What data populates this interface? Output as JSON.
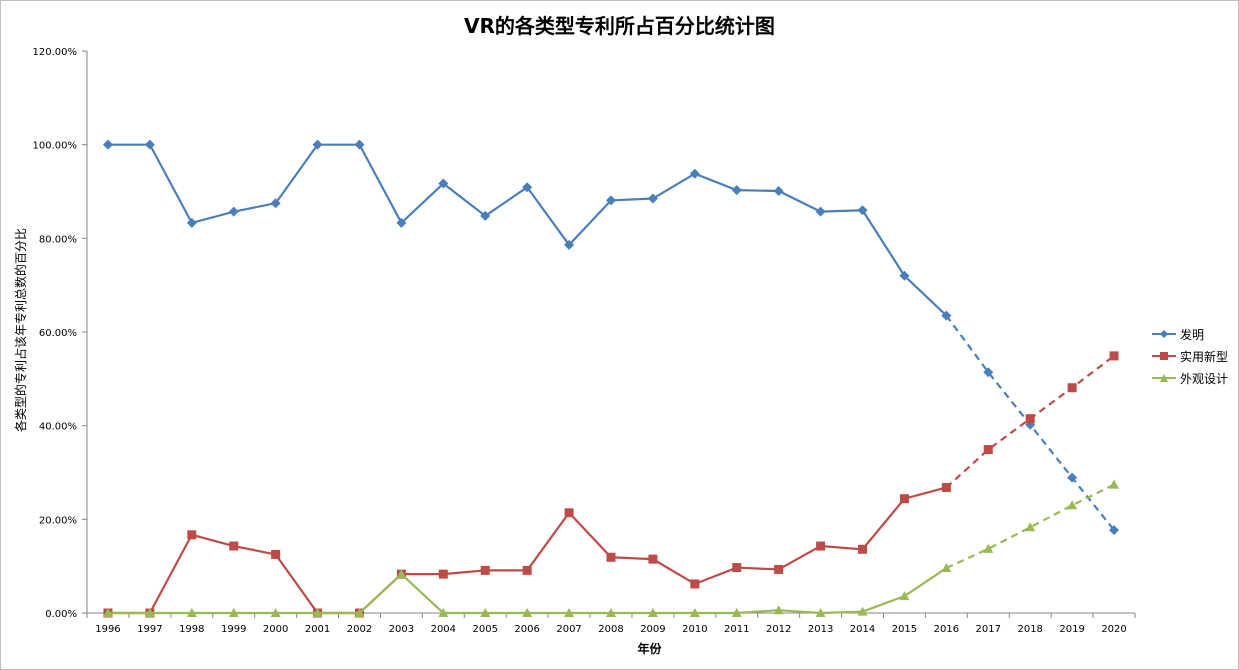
{
  "chart_data": {
    "type": "line",
    "title": "VR的各类型专利所占百分比统计图",
    "xlabel": "年份",
    "ylabel": "各类型的专利占该年专利总数的百分比",
    "categories": [
      "1996",
      "1997",
      "1998",
      "1999",
      "2000",
      "2001",
      "2002",
      "2003",
      "2004",
      "2005",
      "2006",
      "2007",
      "2008",
      "2009",
      "2010",
      "2011",
      "2012",
      "2013",
      "2014",
      "2015",
      "2016",
      "2017",
      "2018",
      "2019",
      "2020"
    ],
    "ylim": [
      0,
      120
    ],
    "yticks": [
      "0.00%",
      "20.00%",
      "40.00%",
      "60.00%",
      "80.00%",
      "100.00%",
      "120.00%"
    ],
    "dashed_from_index": 20,
    "legend_position": "right",
    "series": [
      {
        "name": "发明",
        "color": "#4a7ebb",
        "marker": "diamond",
        "values": [
          100,
          100,
          83.3,
          85.7,
          87.5,
          100,
          100,
          83.3,
          91.7,
          84.8,
          90.9,
          78.6,
          88.1,
          88.5,
          93.8,
          90.3,
          90.1,
          85.7,
          86,
          72,
          63.5,
          51.4,
          40.2,
          28.9,
          17.7
        ]
      },
      {
        "name": "实用新型",
        "color": "#be4b48",
        "marker": "square",
        "values": [
          0,
          0,
          16.7,
          14.3,
          12.5,
          0,
          0,
          8.3,
          8.3,
          9.1,
          9.1,
          21.4,
          11.9,
          11.5,
          6.2,
          9.7,
          9.3,
          14.3,
          13.6,
          24.4,
          26.8,
          34.9,
          41.5,
          48.1,
          54.9
        ]
      },
      {
        "name": "外观设计",
        "color": "#98b954",
        "marker": "triangle",
        "values": [
          0,
          0,
          0,
          0,
          0,
          0,
          0,
          8.3,
          0,
          0,
          0,
          0,
          0,
          0,
          0,
          0,
          0.6,
          0,
          0.3,
          3.6,
          9.6,
          13.7,
          18.3,
          23,
          27.4
        ]
      }
    ]
  }
}
